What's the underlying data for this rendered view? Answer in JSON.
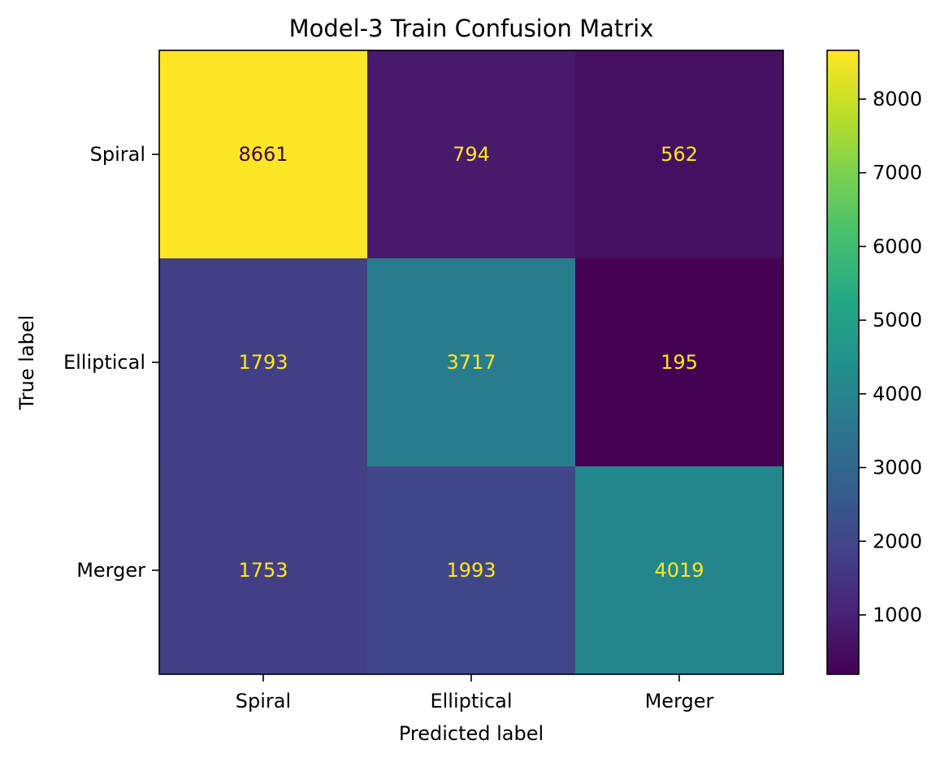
{
  "chart_data": {
    "type": "heatmap",
    "title": "Model-3 Train Confusion Matrix",
    "xlabel": "Predicted label",
    "ylabel": "True label",
    "x_categories": [
      "Spiral",
      "Elliptical",
      "Merger"
    ],
    "y_categories": [
      "Spiral",
      "Elliptical",
      "Merger"
    ],
    "values": [
      [
        8661,
        794,
        562
      ],
      [
        1793,
        3717,
        195
      ],
      [
        1753,
        1993,
        4019
      ]
    ],
    "colormap": "viridis",
    "colorbar": {
      "min": 195,
      "max": 8661,
      "ticks": [
        1000,
        2000,
        3000,
        4000,
        5000,
        6000,
        7000,
        8000
      ]
    },
    "text_colors": {
      "on_dark": "#fde725",
      "on_light": "#440154"
    }
  }
}
